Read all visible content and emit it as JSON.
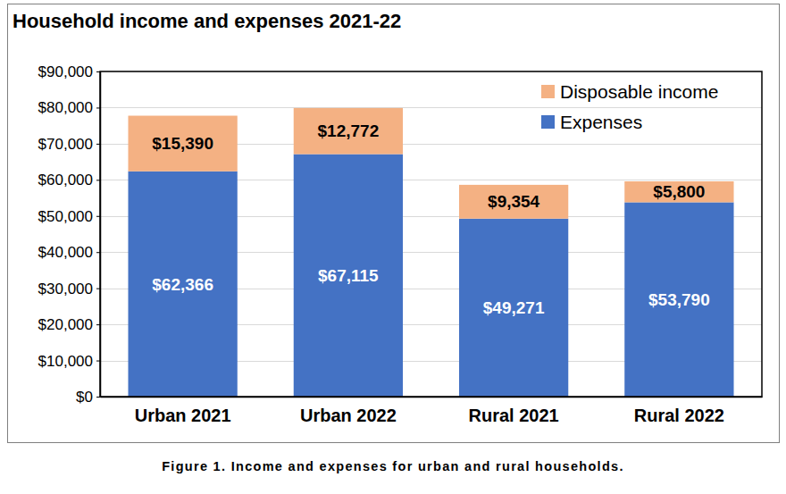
{
  "chart_data": {
    "type": "bar",
    "title": "Household income and expenses 2021-22",
    "caption": "Figure 1. Income and expenses for urban and rural households.",
    "categories": [
      "Urban 2021",
      "Urban 2022",
      "Rural 2021",
      "Rural 2022"
    ],
    "series": [
      {
        "name": "Expenses",
        "color": "#4472c4",
        "values": [
          62366,
          67115,
          49271,
          53790
        ],
        "value_labels": [
          "$62,366",
          "$67,115",
          "$49,271",
          "$53,790"
        ]
      },
      {
        "name": "Disposable income",
        "color": "#f4b183",
        "values": [
          15390,
          12772,
          9354,
          5800
        ],
        "value_labels": [
          "$15,390",
          "$12,772",
          "$9,354",
          "$5,800"
        ]
      }
    ],
    "ylim": [
      0,
      90000
    ],
    "yticks": [
      {
        "value": 0,
        "label": "$0"
      },
      {
        "value": 10000,
        "label": "$10,000"
      },
      {
        "value": 20000,
        "label": "$20,000"
      },
      {
        "value": 30000,
        "label": "$30,000"
      },
      {
        "value": 40000,
        "label": "$40,000"
      },
      {
        "value": 50000,
        "label": "$50,000"
      },
      {
        "value": 60000,
        "label": "$60,000"
      },
      {
        "value": 70000,
        "label": "$70,000"
      },
      {
        "value": 80000,
        "label": "$80,000"
      },
      {
        "value": 90000,
        "label": "$90,000"
      }
    ],
    "grid": true,
    "stacked": true,
    "data_labels": true,
    "legend": "upper right"
  }
}
